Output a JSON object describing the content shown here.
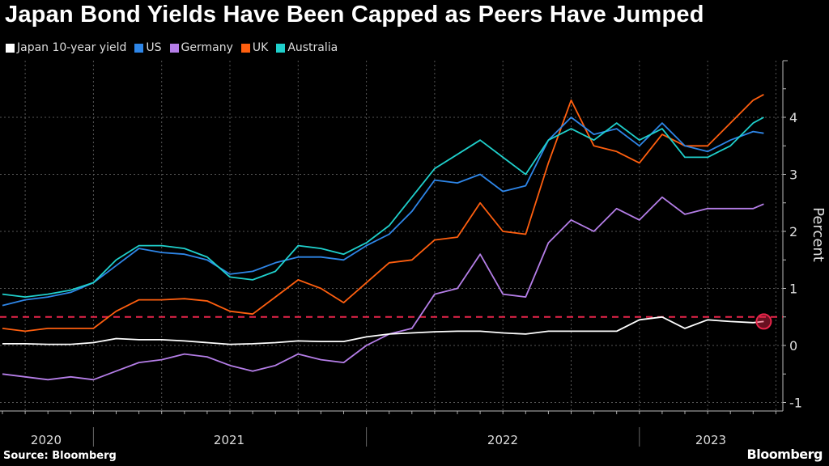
{
  "title": "Japan Bond Yields Have Been Capped as Peers Have Jumped",
  "source": "Source: Bloomberg",
  "brand": "Bloomberg",
  "chart_data": {
    "type": "line",
    "title": "Japan Bond Yields Have Been Capped as Peers Have Jumped",
    "ylabel": "Percent",
    "xlabel": "",
    "ylim": [
      -1.2,
      5
    ],
    "yticks": [
      -1,
      0,
      1,
      2,
      3,
      4
    ],
    "xtick_labels": [
      "2020",
      "2021",
      "2022",
      "2023"
    ],
    "grid": true,
    "legend_placement": "top-left",
    "reference_line": {
      "value": 0.5,
      "color": "#e8254a",
      "style": "dashed"
    },
    "highlight_marker": {
      "series": "Japan 10-year yield",
      "date": "2023-06-15",
      "value": 0.42,
      "color": "#e8254a"
    },
    "x": [
      "2020-09",
      "2020-10",
      "2020-11",
      "2020-12",
      "2021-01",
      "2021-02",
      "2021-03",
      "2021-04",
      "2021-05",
      "2021-06",
      "2021-07",
      "2021-08",
      "2021-09",
      "2021-10",
      "2021-11",
      "2021-12",
      "2022-01",
      "2022-02",
      "2022-03",
      "2022-04",
      "2022-05",
      "2022-06",
      "2022-07",
      "2022-08",
      "2022-09",
      "2022-10",
      "2022-11",
      "2022-12",
      "2023-01",
      "2023-02",
      "2023-03",
      "2023-04",
      "2023-05",
      "2023-06",
      "2023-06-15"
    ],
    "series": [
      {
        "name": "Japan 10-year yield",
        "color": "#ffffff",
        "values": [
          0.03,
          0.03,
          0.02,
          0.02,
          0.05,
          0.12,
          0.1,
          0.1,
          0.08,
          0.05,
          0.02,
          0.03,
          0.05,
          0.08,
          0.07,
          0.07,
          0.15,
          0.2,
          0.22,
          0.24,
          0.25,
          0.25,
          0.22,
          0.2,
          0.25,
          0.25,
          0.25,
          0.25,
          0.45,
          0.5,
          0.3,
          0.45,
          0.42,
          0.4,
          0.42
        ]
      },
      {
        "name": "US",
        "color": "#2e86e8",
        "values": [
          0.7,
          0.8,
          0.85,
          0.93,
          1.1,
          1.4,
          1.7,
          1.63,
          1.6,
          1.5,
          1.25,
          1.3,
          1.45,
          1.55,
          1.55,
          1.5,
          1.75,
          1.95,
          2.35,
          2.9,
          2.85,
          3.0,
          2.7,
          2.8,
          3.6,
          4.0,
          3.7,
          3.8,
          3.5,
          3.9,
          3.5,
          3.4,
          3.6,
          3.75,
          3.72
        ]
      },
      {
        "name": "Germany",
        "color": "#b57ee8",
        "values": [
          -0.5,
          -0.55,
          -0.6,
          -0.55,
          -0.6,
          -0.45,
          -0.3,
          -0.25,
          -0.15,
          -0.2,
          -0.35,
          -0.45,
          -0.35,
          -0.15,
          -0.25,
          -0.3,
          0.0,
          0.2,
          0.3,
          0.9,
          1.0,
          1.6,
          0.9,
          0.85,
          1.8,
          2.2,
          2.0,
          2.4,
          2.2,
          2.6,
          2.3,
          2.4,
          2.4,
          2.4,
          2.48
        ]
      },
      {
        "name": "UK",
        "color": "#ff5f0f",
        "values": [
          0.3,
          0.25,
          0.3,
          0.3,
          0.3,
          0.6,
          0.8,
          0.8,
          0.82,
          0.78,
          0.6,
          0.55,
          0.85,
          1.15,
          1.0,
          0.75,
          1.1,
          1.45,
          1.5,
          1.85,
          1.9,
          2.5,
          2.0,
          1.95,
          3.2,
          4.3,
          3.5,
          3.4,
          3.2,
          3.7,
          3.5,
          3.5,
          3.9,
          4.3,
          4.4
        ]
      },
      {
        "name": "Australia",
        "color": "#1fd0cc",
        "values": [
          0.9,
          0.85,
          0.9,
          0.97,
          1.1,
          1.5,
          1.75,
          1.75,
          1.7,
          1.55,
          1.2,
          1.15,
          1.3,
          1.75,
          1.7,
          1.6,
          1.8,
          2.1,
          2.6,
          3.1,
          3.35,
          3.6,
          3.3,
          3.0,
          3.6,
          3.8,
          3.6,
          3.9,
          3.6,
          3.8,
          3.3,
          3.3,
          3.5,
          3.9,
          4.0
        ]
      }
    ]
  }
}
